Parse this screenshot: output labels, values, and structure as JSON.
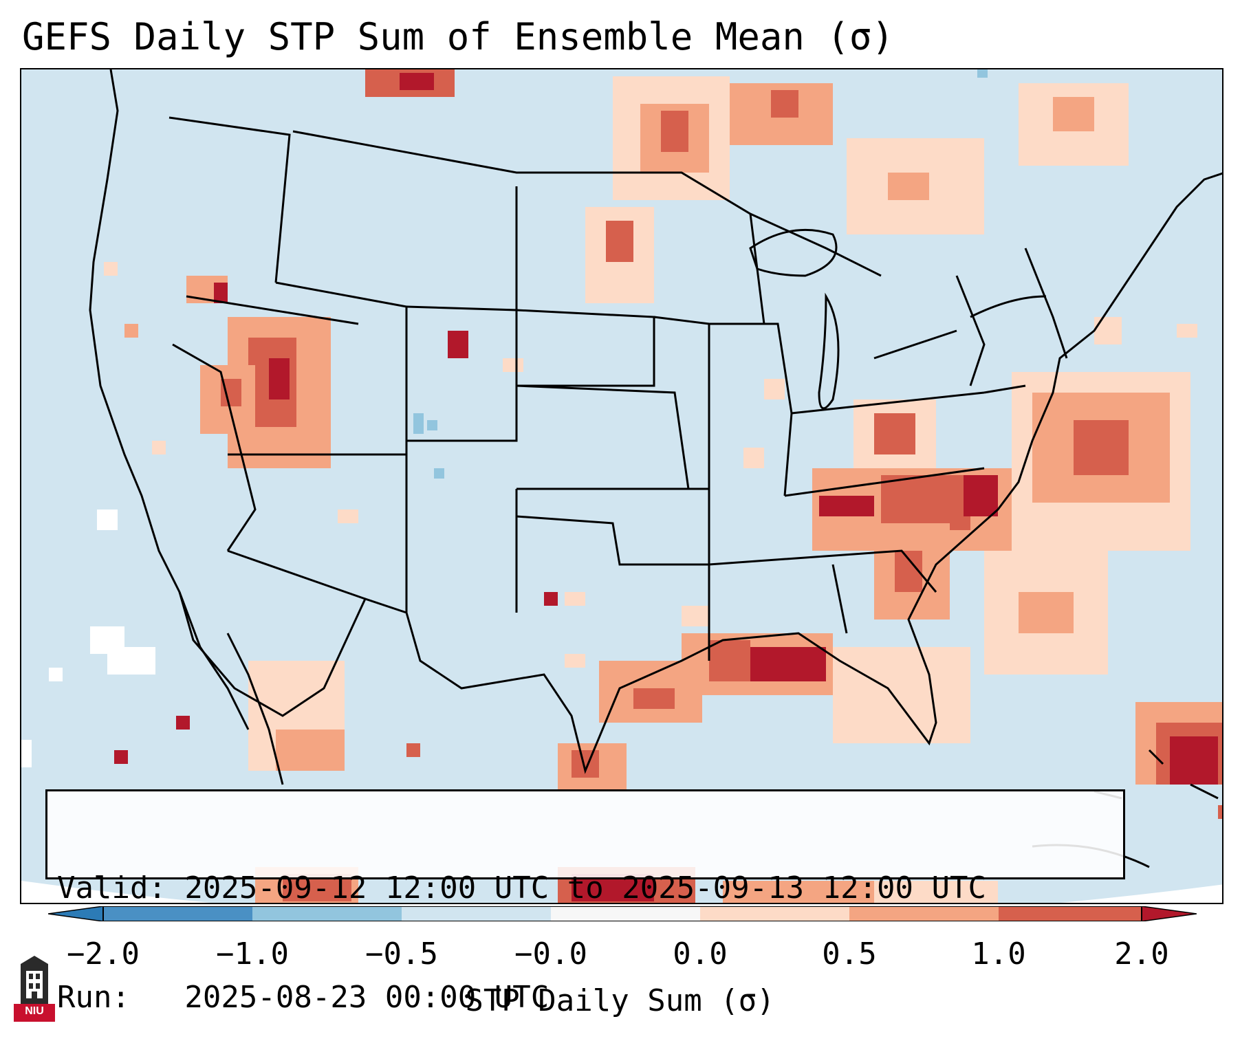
{
  "title": "GEFS Daily STP Sum of Ensemble Mean (σ)",
  "info": {
    "valid_line": "Valid: 2025-09-12 12:00 UTC to 2025-09-13 12:00 UTC",
    "run_line": "Run:   2025-08-23 00:00 UTC"
  },
  "colorbar": {
    "label": "STP Daily Sum (σ)",
    "ticks": [
      "−2.0",
      "−1.0",
      "−0.5",
      "−0.0",
      "0.0",
      "0.5",
      "1.0",
      "2.0"
    ],
    "colors": [
      "#2c7bb6",
      "#4a90c4",
      "#92c5de",
      "#d1e5f0",
      "#f7f7f7",
      "#fddbc7",
      "#f4a582",
      "#d6604d",
      "#b2182b"
    ]
  },
  "logo": {
    "text": "NIU"
  },
  "colors": {
    "background_field": "#d1e5f0",
    "outside_projection": "#ffffff",
    "positive_low": "#fddbc7",
    "positive_mid": "#f4a582",
    "positive_high": "#d6604d",
    "positive_extreme": "#b2182b",
    "negative_low": "#92c5de"
  }
}
